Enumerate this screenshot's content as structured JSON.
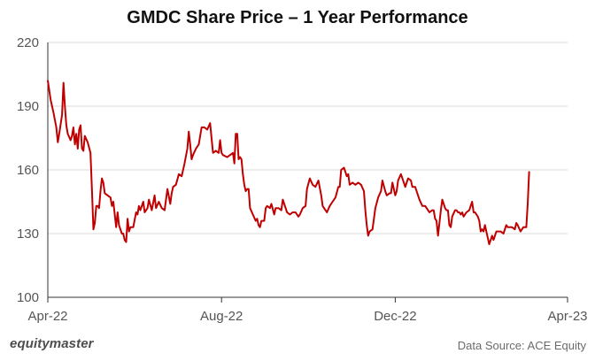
{
  "chart_data": {
    "type": "line",
    "title": "GMDC Share Price – 1 Year Performance",
    "xlabel": "",
    "ylabel": "",
    "ylim": [
      100,
      220
    ],
    "y_ticks": [
      100,
      130,
      160,
      190,
      220
    ],
    "x_range": [
      0,
      365
    ],
    "x_ticks": [
      {
        "label": "Apr-22",
        "x": 0
      },
      {
        "label": "Aug-22",
        "x": 122
      },
      {
        "label": "Dec-22",
        "x": 244
      },
      {
        "label": "Apr-23",
        "x": 365
      }
    ],
    "grid": "horizontal",
    "legend": "none",
    "series": [
      {
        "color": "#c00000",
        "points": [
          [
            0,
            202
          ],
          [
            2,
            193
          ],
          [
            4,
            187
          ],
          [
            6,
            180
          ],
          [
            7,
            173
          ],
          [
            8,
            177
          ],
          [
            10,
            186
          ],
          [
            11,
            201
          ],
          [
            12,
            190
          ],
          [
            13,
            181
          ],
          [
            14,
            177
          ],
          [
            16,
            174
          ],
          [
            17,
            176
          ],
          [
            18,
            180
          ],
          [
            19,
            172
          ],
          [
            20,
            177
          ],
          [
            21,
            170
          ],
          [
            22,
            179
          ],
          [
            23,
            181
          ],
          [
            24,
            170
          ],
          [
            25,
            169
          ],
          [
            26,
            176
          ],
          [
            28,
            173
          ],
          [
            30,
            168
          ],
          [
            31,
            150
          ],
          [
            32,
            132
          ],
          [
            33,
            135
          ],
          [
            34,
            143
          ],
          [
            35,
            143
          ],
          [
            36,
            142
          ],
          [
            37,
            150
          ],
          [
            38,
            156
          ],
          [
            39,
            154
          ],
          [
            40,
            149
          ],
          [
            42,
            148
          ],
          [
            44,
            147
          ],
          [
            45,
            143
          ],
          [
            46,
            145
          ],
          [
            48,
            133
          ],
          [
            49,
            140
          ],
          [
            50,
            134
          ],
          [
            52,
            130
          ],
          [
            53,
            130
          ],
          [
            54,
            127
          ],
          [
            55,
            126
          ],
          [
            56,
            137
          ],
          [
            57,
            131
          ],
          [
            58,
            133
          ],
          [
            60,
            133
          ],
          [
            62,
            140
          ],
          [
            63,
            139
          ],
          [
            64,
            143
          ],
          [
            65,
            141
          ],
          [
            67,
            145
          ],
          [
            68,
            140
          ],
          [
            69,
            141
          ],
          [
            70,
            142
          ],
          [
            71,
            146
          ],
          [
            73,
            141
          ],
          [
            75,
            148
          ],
          [
            76,
            142
          ],
          [
            78,
            145
          ],
          [
            80,
            142
          ],
          [
            82,
            141
          ],
          [
            84,
            151
          ],
          [
            86,
            144
          ],
          [
            87,
            149
          ],
          [
            88,
            152
          ],
          [
            90,
            153
          ],
          [
            92,
            158
          ],
          [
            94,
            157
          ],
          [
            96,
            163
          ],
          [
            98,
            170
          ],
          [
            99,
            178
          ],
          [
            100,
            172
          ],
          [
            101,
            165
          ],
          [
            102,
            167
          ],
          [
            104,
            170
          ],
          [
            106,
            172
          ],
          [
            108,
            180
          ],
          [
            110,
            180
          ],
          [
            112,
            179
          ],
          [
            114,
            182
          ],
          [
            115,
            175
          ],
          [
            116,
            168
          ],
          [
            118,
            169
          ],
          [
            120,
            168
          ],
          [
            121,
            174
          ],
          [
            122,
            168
          ],
          [
            123,
            167
          ],
          [
            126,
            166
          ],
          [
            128,
            167
          ],
          [
            130,
            168
          ],
          [
            131,
            163
          ],
          [
            132,
            177
          ],
          [
            133,
            177
          ],
          [
            134,
            165
          ],
          [
            135,
            166
          ],
          [
            136,
            165
          ],
          [
            137,
            158
          ],
          [
            138,
            153
          ],
          [
            139,
            150
          ],
          [
            140,
            151
          ],
          [
            141,
            151
          ],
          [
            142,
            142
          ],
          [
            144,
            139
          ],
          [
            146,
            136
          ],
          [
            147,
            137
          ],
          [
            148,
            134
          ],
          [
            149,
            133
          ],
          [
            150,
            136
          ],
          [
            152,
            136
          ],
          [
            153,
            142
          ],
          [
            154,
            143
          ],
          [
            156,
            142
          ],
          [
            157,
            144
          ],
          [
            159,
            139
          ],
          [
            160,
            142
          ],
          [
            162,
            142
          ],
          [
            164,
            141
          ],
          [
            165,
            146
          ],
          [
            166,
            144
          ],
          [
            167,
            142
          ],
          [
            168,
            140
          ],
          [
            170,
            139
          ],
          [
            172,
            140
          ],
          [
            174,
            140
          ],
          [
            176,
            138
          ],
          [
            177,
            139
          ],
          [
            179,
            142
          ],
          [
            181,
            143
          ],
          [
            182,
            151
          ],
          [
            184,
            156
          ],
          [
            186,
            153
          ],
          [
            188,
            152
          ],
          [
            190,
            155
          ],
          [
            192,
            148
          ],
          [
            193,
            143
          ],
          [
            195,
            141
          ],
          [
            196,
            140
          ],
          [
            198,
            143
          ],
          [
            200,
            145
          ],
          [
            202,
            147
          ],
          [
            204,
            152
          ],
          [
            205,
            152
          ],
          [
            206,
            160
          ],
          [
            208,
            161
          ],
          [
            210,
            157
          ],
          [
            211,
            158
          ],
          [
            212,
            153
          ],
          [
            214,
            154
          ],
          [
            216,
            153
          ],
          [
            218,
            154
          ],
          [
            220,
            153
          ],
          [
            222,
            150
          ],
          [
            223,
            141
          ],
          [
            224,
            134
          ],
          [
            225,
            129
          ],
          [
            226,
            131
          ],
          [
            228,
            132
          ],
          [
            230,
            142
          ],
          [
            232,
            147
          ],
          [
            234,
            150
          ],
          [
            235,
            155
          ],
          [
            237,
            150
          ],
          [
            238,
            148
          ],
          [
            240,
            149
          ],
          [
            241,
            149
          ],
          [
            242,
            154
          ],
          [
            244,
            148
          ],
          [
            245,
            150
          ],
          [
            246,
            155
          ],
          [
            248,
            158
          ],
          [
            250,
            154
          ],
          [
            251,
            152
          ],
          [
            253,
            156
          ],
          [
            255,
            155
          ],
          [
            256,
            152
          ],
          [
            258,
            152
          ],
          [
            260,
            148
          ],
          [
            261,
            146
          ],
          [
            263,
            143
          ],
          [
            265,
            143
          ],
          [
            267,
            141
          ],
          [
            268,
            140
          ],
          [
            270,
            141
          ],
          [
            271,
            141
          ],
          [
            272,
            137
          ],
          [
            273,
            136
          ],
          [
            274,
            129
          ],
          [
            276,
            141
          ],
          [
            277,
            146
          ],
          [
            279,
            142
          ],
          [
            280,
            141
          ],
          [
            281,
            141
          ],
          [
            282,
            134
          ],
          [
            283,
            133
          ],
          [
            284,
            138
          ],
          [
            286,
            141
          ],
          [
            287,
            141
          ],
          [
            288,
            140
          ],
          [
            289,
            140
          ],
          [
            290,
            139
          ],
          [
            291,
            140
          ],
          [
            292,
            138
          ],
          [
            294,
            140
          ],
          [
            296,
            141
          ],
          [
            298,
            145
          ],
          [
            299,
            140
          ],
          [
            300,
            140
          ],
          [
            302,
            138
          ],
          [
            303,
            136
          ],
          [
            304,
            131
          ],
          [
            305,
            132
          ],
          [
            306,
            131
          ],
          [
            307,
            134
          ],
          [
            309,
            128
          ],
          [
            310,
            125
          ],
          [
            312,
            129
          ],
          [
            313,
            127
          ],
          [
            315,
            131
          ],
          [
            316,
            131
          ],
          [
            318,
            131
          ],
          [
            320,
            130
          ],
          [
            322,
            134
          ],
          [
            323,
            133
          ],
          [
            326,
            133
          ],
          [
            328,
            132
          ],
          [
            329,
            135
          ],
          [
            330,
            134
          ],
          [
            332,
            131
          ],
          [
            334,
            133
          ],
          [
            336,
            133
          ],
          [
            337,
            144
          ],
          [
            338,
            159
          ]
        ]
      }
    ]
  },
  "footer": {
    "brand": "equitymaster",
    "source": "Data Source: ACE Equity"
  }
}
